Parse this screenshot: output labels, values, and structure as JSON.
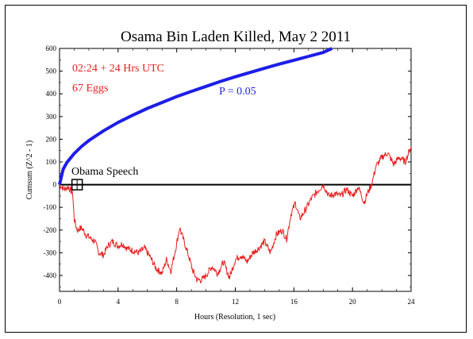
{
  "chart_data": {
    "type": "line",
    "title": "Osama Bin Laden Killed, May 2 2011",
    "xlabel": "Hours (Resolution, 1 sec)",
    "ylabel": "Cumsum (Z^2 - 1)",
    "xlim": [
      0,
      24
    ],
    "ylim": [
      -470,
      600
    ],
    "x_ticks": [
      0,
      4,
      8,
      12,
      16,
      20,
      24
    ],
    "y_ticks": [
      -400,
      -300,
      -200,
      -100,
      0,
      100,
      200,
      300,
      400,
      500,
      600
    ],
    "grid": false,
    "annotations": {
      "time_label": "02:24 + 24 Hrs UTC",
      "eggs_label": "67 Eggs",
      "p_label": "P = 0.05",
      "event_label": "Obama Speech",
      "event_x": 1.2,
      "event_y": 0
    },
    "series": [
      {
        "role": "significance-envelope",
        "color": "#1e1ee6",
        "x": [
          0,
          0.25,
          0.5,
          1,
          1.5,
          2,
          3,
          4,
          5,
          6,
          7,
          8,
          9,
          10,
          11,
          12,
          13,
          14,
          15,
          16,
          17,
          18,
          18.6
        ],
        "values": [
          0,
          68,
          97,
          137,
          168,
          194,
          237,
          274,
          306,
          336,
          362,
          388,
          411,
          433,
          455,
          475,
          494,
          513,
          531,
          548,
          565,
          582,
          600
        ]
      },
      {
        "role": "cumulative-deviation",
        "color": "#e61e1e",
        "x": [
          0,
          0.3,
          0.6,
          0.9,
          1.0,
          1.2,
          1.5,
          1.8,
          2.0,
          2.4,
          2.7,
          3.0,
          3.3,
          3.6,
          4.0,
          4.3,
          4.6,
          5.0,
          5.4,
          5.8,
          6.2,
          6.6,
          7.0,
          7.3,
          7.6,
          7.9,
          8.2,
          8.5,
          8.8,
          9.1,
          9.4,
          9.7,
          10.0,
          10.4,
          10.8,
          11.2,
          11.6,
          12.0,
          12.4,
          12.8,
          13.2,
          13.6,
          14.0,
          14.4,
          14.8,
          15.2,
          15.5,
          15.8,
          16.1,
          16.4,
          16.8,
          17.2,
          17.6,
          18.0,
          18.4,
          18.8,
          19.2,
          19.6,
          20.0,
          20.4,
          20.8,
          21.0,
          21.3,
          21.6,
          22.0,
          22.4,
          22.8,
          23.2,
          23.6,
          24.0
        ],
        "values": [
          0,
          -20,
          -10,
          -40,
          -150,
          -200,
          -190,
          -220,
          -230,
          -250,
          -300,
          -310,
          -270,
          -250,
          -270,
          -260,
          -280,
          -290,
          -300,
          -280,
          -320,
          -370,
          -390,
          -330,
          -380,
          -290,
          -190,
          -250,
          -310,
          -380,
          -420,
          -420,
          -400,
          -360,
          -390,
          -340,
          -410,
          -330,
          -310,
          -340,
          -300,
          -280,
          -250,
          -300,
          -220,
          -200,
          -240,
          -130,
          -80,
          -150,
          -110,
          -60,
          -30,
          0,
          -50,
          -40,
          -50,
          -20,
          -50,
          -10,
          -80,
          -40,
          0,
          80,
          120,
          140,
          90,
          120,
          100,
          170
        ]
      }
    ]
  }
}
